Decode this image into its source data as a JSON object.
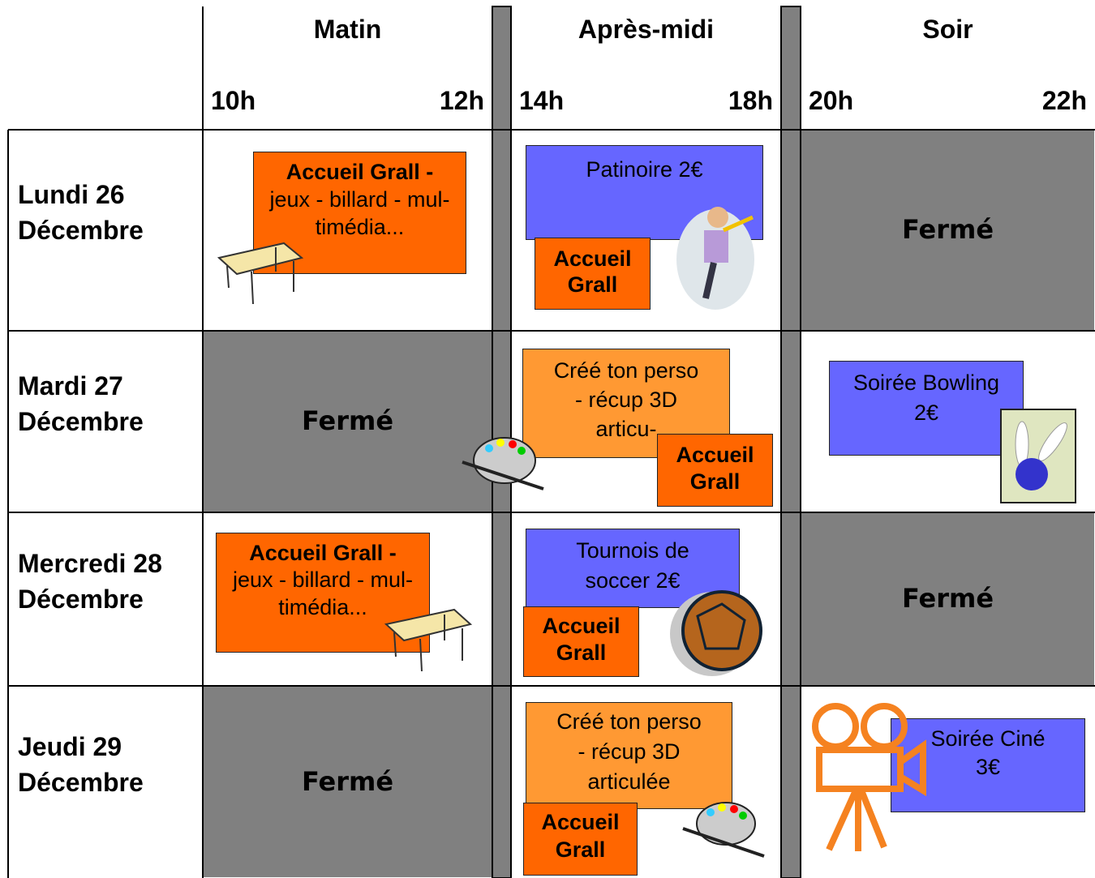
{
  "columns": [
    {
      "period": "Matin",
      "start": "10h",
      "end": "12h"
    },
    {
      "period": "Après-midi",
      "start": "14h",
      "end": "18h"
    },
    {
      "period": "Soir",
      "start": "20h",
      "end": "22h"
    }
  ],
  "rows": [
    {
      "day": [
        "Lundi 26",
        "Décembre"
      ],
      "cells": [
        {
          "boxes": [
            {
              "lines": [
                "Accueil Grall -",
                "jeux - billard - mul-",
                "timédia..."
              ]
            }
          ]
        },
        {
          "boxes": [
            {
              "lines": [
                "Patinoire 2€"
              ]
            },
            {
              "lines": [
                "Accueil",
                "Grall"
              ]
            }
          ]
        },
        {
          "closed": "Fermé"
        }
      ]
    },
    {
      "day": [
        "Mardi 27",
        "Décembre"
      ],
      "cells": [
        {
          "closed": "Fermé"
        },
        {
          "boxes": [
            {
              "lines": [
                "Créé ton perso",
                "- récup 3D",
                "articu-"
              ]
            },
            {
              "lines": [
                "Accueil",
                "Grall"
              ]
            }
          ]
        },
        {
          "boxes": [
            {
              "lines": [
                "Soirée Bowling",
                "2€"
              ]
            }
          ]
        }
      ]
    },
    {
      "day": [
        "Mercredi 28",
        "Décembre"
      ],
      "cells": [
        {
          "boxes": [
            {
              "lines": [
                "Accueil Grall -",
                "jeux - billard - mul-",
                "timédia..."
              ]
            }
          ]
        },
        {
          "boxes": [
            {
              "lines": [
                "Tournois de",
                "soccer 2€"
              ]
            },
            {
              "lines": [
                "Accueil",
                "Grall"
              ]
            }
          ]
        },
        {
          "closed": "Fermé"
        }
      ]
    },
    {
      "day": [
        "Jeudi 29",
        "Décembre"
      ],
      "cells": [
        {
          "closed": "Fermé"
        },
        {
          "boxes": [
            {
              "lines": [
                "Créé ton perso",
                "- récup 3D",
                "articulée"
              ]
            },
            {
              "lines": [
                "Accueil",
                "Grall"
              ]
            }
          ]
        },
        {
          "boxes": [
            {
              "lines": [
                "Soirée Ciné",
                "3€"
              ]
            }
          ]
        }
      ]
    }
  ]
}
